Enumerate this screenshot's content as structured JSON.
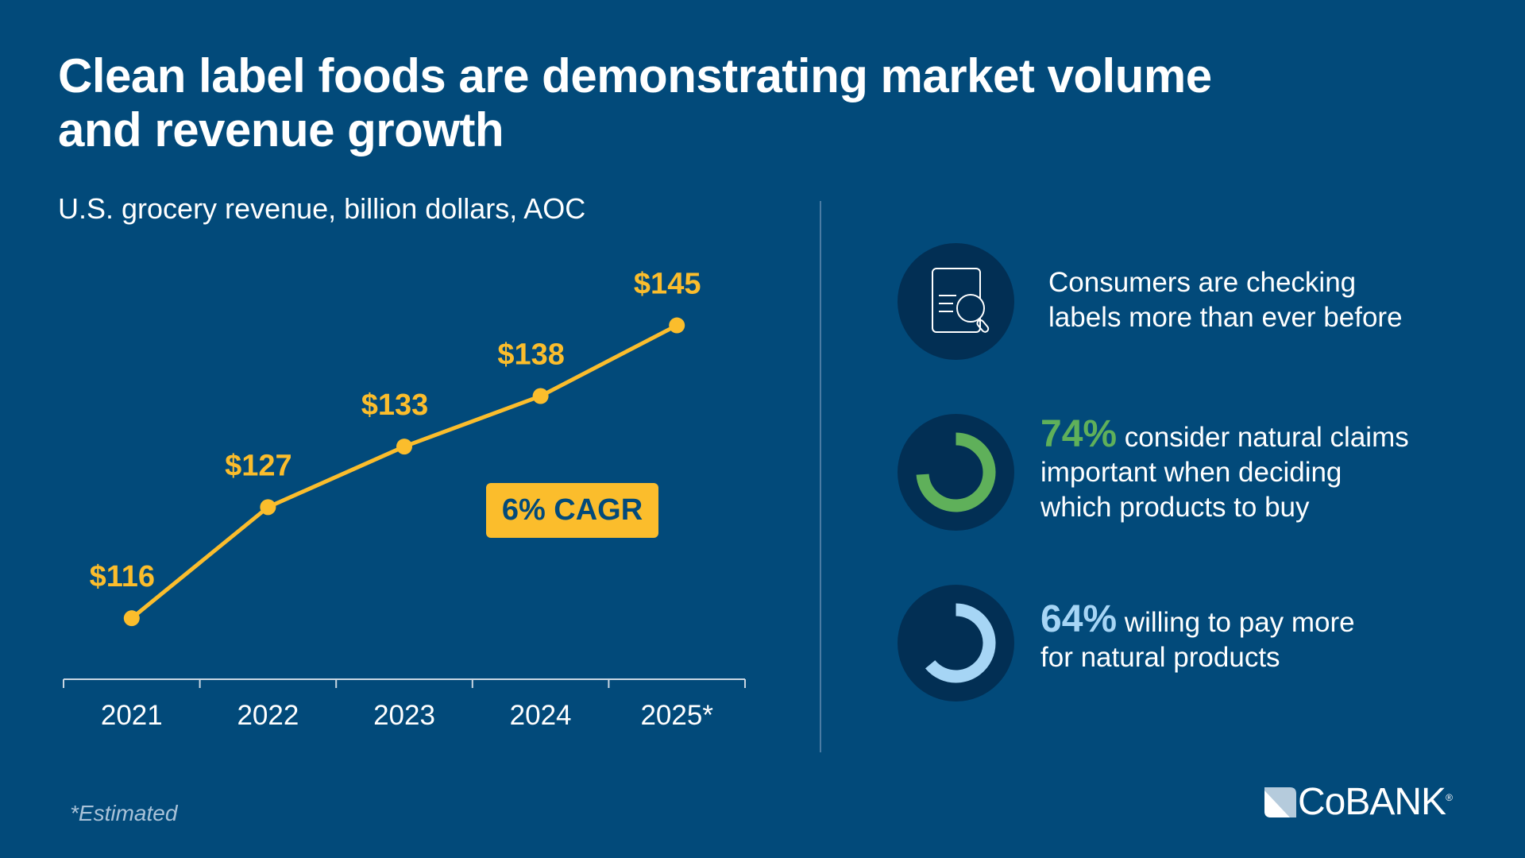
{
  "title_line1": "Clean label foods are demonstrating market volume",
  "title_line2": "and revenue growth",
  "subtitle": "U.S. grocery revenue, billion dollars, AOC",
  "chart_data": {
    "type": "line",
    "categories": [
      "2021",
      "2022",
      "2023",
      "2024",
      "2025*"
    ],
    "values": [
      116,
      127,
      133,
      138,
      145
    ],
    "data_labels": [
      "$116",
      "$127",
      "$133",
      "$138",
      "$145"
    ],
    "unit": "billion dollars",
    "ylim": [
      105,
      150
    ],
    "grid": false,
    "annotation": "6% CAGR",
    "line_color": "#fbbd2c"
  },
  "stats": [
    {
      "pct": "",
      "text_line1": "Consumers are checking",
      "text_line2": "labels more than ever before",
      "icon": "document-search-icon"
    },
    {
      "pct": "74%",
      "pct_value": 74,
      "text_line1": " consider natural claims",
      "text_line2": "important when deciding",
      "text_line3": "which products to buy",
      "color": "#5fb05a"
    },
    {
      "pct": "64%",
      "pct_value": 64,
      "text_line1": " willing to pay more",
      "text_line2": "for natural products",
      "color": "#a6d5f5"
    }
  ],
  "footnote": "*Estimated",
  "logo": "COBANK",
  "colors": {
    "background": "#024a7a",
    "circle": "#022f54",
    "accent": "#fbbd2c"
  }
}
